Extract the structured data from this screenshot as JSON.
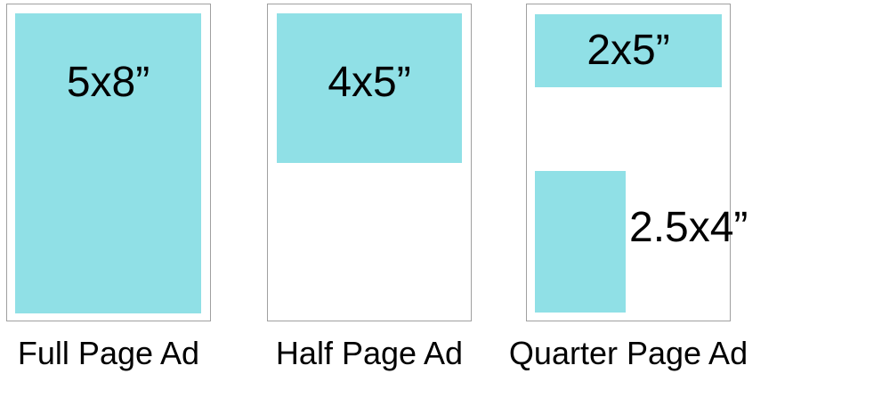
{
  "colors": {
    "ad_fill": "#90e0e6",
    "page_border": "#a0a0a0",
    "page_bg": "#ffffff",
    "text": "#000000"
  },
  "panels": [
    {
      "id": "full-page",
      "caption": "Full Page Ad",
      "ads": [
        {
          "label": "5x8”"
        }
      ]
    },
    {
      "id": "half-page",
      "caption": "Half Page Ad",
      "ads": [
        {
          "label": "4x5”"
        }
      ]
    },
    {
      "id": "quarter-page",
      "caption": "Quarter Page Ad",
      "ads": [
        {
          "label": "2x5”"
        },
        {
          "label": "2.5x4”"
        }
      ]
    }
  ]
}
